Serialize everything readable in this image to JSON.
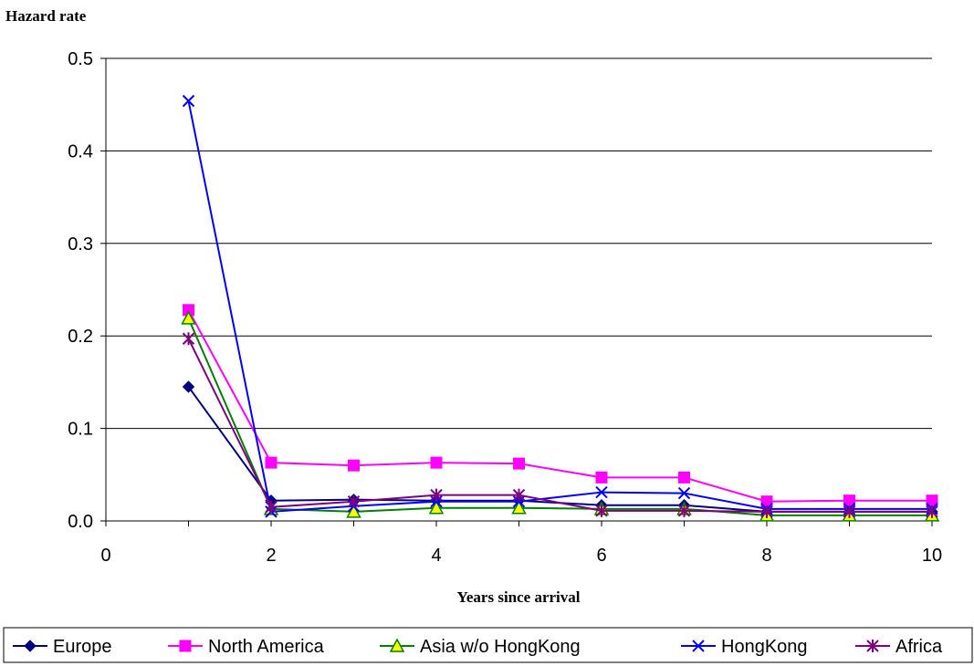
{
  "chart_data": {
    "type": "line",
    "ylabel": "Hazard rate",
    "xlabel": "Years since arrival",
    "xlim": [
      0,
      10
    ],
    "ylim": [
      0,
      0.5
    ],
    "x_ticks": [
      0,
      2,
      4,
      6,
      8,
      10
    ],
    "y_ticks": [
      "0.0",
      "0.1",
      "0.2",
      "0.3",
      "0.4",
      "0.5"
    ],
    "grid": "horizontal",
    "legend_position": "bottom",
    "x": [
      1,
      2,
      3,
      4,
      5,
      6,
      7,
      8,
      9,
      10
    ],
    "series": [
      {
        "name": "Europe",
        "color": "#000080",
        "marker": "diamond",
        "values": [
          0.145,
          0.022,
          0.023,
          0.022,
          0.022,
          0.017,
          0.017,
          0.01,
          0.01,
          0.01
        ]
      },
      {
        "name": "North America",
        "color": "#ff00ff",
        "marker": "square",
        "values": [
          0.228,
          0.063,
          0.06,
          0.063,
          0.062,
          0.047,
          0.047,
          0.021,
          0.022,
          0.022
        ]
      },
      {
        "name": "Asia w/o HongKong",
        "color": "#008000",
        "marker": "triangle",
        "values": [
          0.219,
          0.013,
          0.01,
          0.014,
          0.014,
          0.013,
          0.013,
          0.006,
          0.006,
          0.006
        ]
      },
      {
        "name": "HongKong",
        "color": "#0000ff",
        "marker": "x",
        "values": [
          0.454,
          0.01,
          0.016,
          0.021,
          0.021,
          0.031,
          0.03,
          0.013,
          0.013,
          0.013
        ]
      },
      {
        "name": "Africa",
        "color": "#800080",
        "marker": "star",
        "values": [
          0.197,
          0.015,
          0.021,
          0.028,
          0.028,
          0.011,
          0.011,
          0.01,
          0.01,
          0.01
        ]
      }
    ]
  }
}
